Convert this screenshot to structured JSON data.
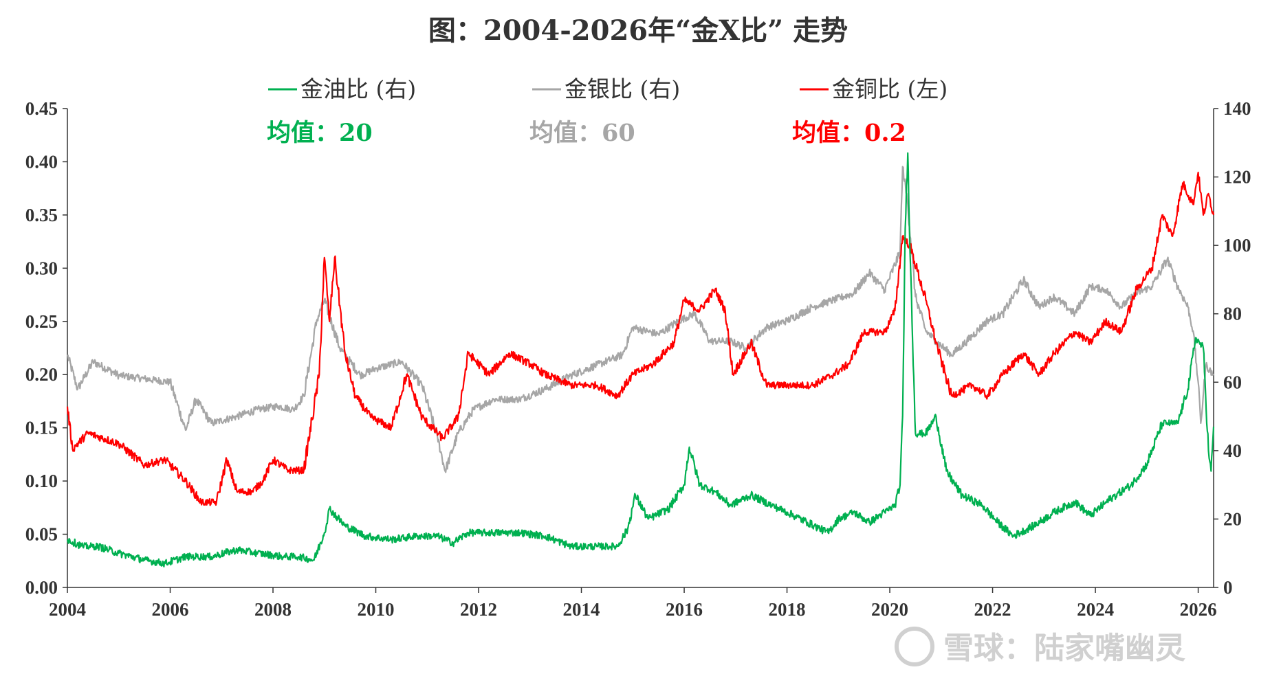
{
  "chart_data": {
    "type": "line",
    "title": "图：2004-2026年“金X比” 走势",
    "x_range": [
      2004,
      2026.3
    ],
    "x_ticks": [
      "2004",
      "2006",
      "2008",
      "2010",
      "2012",
      "2014",
      "2016",
      "2018",
      "2020",
      "2022",
      "2024",
      "2026"
    ],
    "y_left": {
      "range": [
        0,
        0.45
      ],
      "ticks": [
        "0.00",
        "0.05",
        "0.10",
        "0.15",
        "0.20",
        "0.25",
        "0.30",
        "0.35",
        "0.40",
        "0.45"
      ]
    },
    "y_right": {
      "range": [
        0,
        140
      ],
      "ticks": [
        "0",
        "20",
        "40",
        "60",
        "80",
        "100",
        "120",
        "140"
      ]
    },
    "grid": false,
    "legend_position": "top",
    "series": [
      {
        "name": "金油比 (右)",
        "axis": "right",
        "color": "#00b050",
        "avg_label": "均值：",
        "avg_value": "20",
        "points": [
          [
            2004,
            14
          ],
          [
            2004.3,
            12
          ],
          [
            2004.6,
            12
          ],
          [
            2005,
            10
          ],
          [
            2005.5,
            8
          ],
          [
            2005.9,
            7
          ],
          [
            2006.3,
            9
          ],
          [
            2006.8,
            9
          ],
          [
            2007.3,
            11
          ],
          [
            2007.7,
            10
          ],
          [
            2008.2,
            9
          ],
          [
            2008.5,
            9
          ],
          [
            2008.8,
            8
          ],
          [
            2009.0,
            16
          ],
          [
            2009.1,
            23
          ],
          [
            2009.4,
            18
          ],
          [
            2009.8,
            15
          ],
          [
            2010.3,
            14
          ],
          [
            2010.8,
            15
          ],
          [
            2011.2,
            15
          ],
          [
            2011.5,
            13
          ],
          [
            2011.8,
            16
          ],
          [
            2012.3,
            16
          ],
          [
            2012.8,
            16
          ],
          [
            2013.3,
            15
          ],
          [
            2013.8,
            12
          ],
          [
            2014.3,
            12
          ],
          [
            2014.7,
            12
          ],
          [
            2014.9,
            17
          ],
          [
            2015.05,
            27
          ],
          [
            2015.3,
            20
          ],
          [
            2015.7,
            23
          ],
          [
            2016.0,
            30
          ],
          [
            2016.1,
            41
          ],
          [
            2016.3,
            30
          ],
          [
            2016.6,
            28
          ],
          [
            2016.9,
            24
          ],
          [
            2017.3,
            27
          ],
          [
            2017.7,
            24
          ],
          [
            2018.0,
            22
          ],
          [
            2018.4,
            19
          ],
          [
            2018.8,
            16
          ],
          [
            2019.0,
            20
          ],
          [
            2019.3,
            22
          ],
          [
            2019.6,
            19
          ],
          [
            2019.9,
            22
          ],
          [
            2020.1,
            24
          ],
          [
            2020.2,
            30
          ],
          [
            2020.25,
            50
          ],
          [
            2020.3,
            105
          ],
          [
            2020.35,
            127
          ],
          [
            2020.4,
            95
          ],
          [
            2020.5,
            45
          ],
          [
            2020.7,
            45
          ],
          [
            2020.9,
            50
          ],
          [
            2021.1,
            34
          ],
          [
            2021.4,
            27
          ],
          [
            2021.8,
            24
          ],
          [
            2022.1,
            19
          ],
          [
            2022.4,
            15
          ],
          [
            2022.8,
            18
          ],
          [
            2023.2,
            22
          ],
          [
            2023.6,
            25
          ],
          [
            2023.9,
            21
          ],
          [
            2024.3,
            26
          ],
          [
            2024.7,
            30
          ],
          [
            2025.0,
            36
          ],
          [
            2025.3,
            48
          ],
          [
            2025.6,
            48
          ],
          [
            2025.8,
            58
          ],
          [
            2025.95,
            73
          ],
          [
            2026.1,
            70
          ],
          [
            2026.2,
            40
          ],
          [
            2026.25,
            34
          ],
          [
            2026.3,
            47
          ]
        ]
      },
      {
        "name": "金银比 (右)",
        "axis": "right",
        "color": "#a6a6a6",
        "avg_label": "均值：",
        "avg_value": "60",
        "points": [
          [
            2004,
            68
          ],
          [
            2004.2,
            58
          ],
          [
            2004.5,
            66
          ],
          [
            2005,
            62
          ],
          [
            2005.5,
            61
          ],
          [
            2006,
            60
          ],
          [
            2006.3,
            46
          ],
          [
            2006.5,
            55
          ],
          [
            2006.8,
            48
          ],
          [
            2007.3,
            50
          ],
          [
            2007.7,
            52
          ],
          [
            2008.1,
            53
          ],
          [
            2008.4,
            52
          ],
          [
            2008.6,
            56
          ],
          [
            2008.85,
            78
          ],
          [
            2009.0,
            84
          ],
          [
            2009.3,
            70
          ],
          [
            2009.7,
            62
          ],
          [
            2010.0,
            64
          ],
          [
            2010.5,
            66
          ],
          [
            2010.9,
            59
          ],
          [
            2011.2,
            44
          ],
          [
            2011.35,
            34
          ],
          [
            2011.6,
            45
          ],
          [
            2011.9,
            52
          ],
          [
            2012.3,
            55
          ],
          [
            2012.8,
            55
          ],
          [
            2013.3,
            58
          ],
          [
            2013.8,
            62
          ],
          [
            2014.3,
            65
          ],
          [
            2014.8,
            68
          ],
          [
            2015.0,
            76
          ],
          [
            2015.5,
            74
          ],
          [
            2015.9,
            78
          ],
          [
            2016.2,
            80
          ],
          [
            2016.5,
            72
          ],
          [
            2016.9,
            72
          ],
          [
            2017.2,
            70
          ],
          [
            2017.6,
            76
          ],
          [
            2018.0,
            78
          ],
          [
            2018.5,
            82
          ],
          [
            2018.9,
            84
          ],
          [
            2019.3,
            86
          ],
          [
            2019.6,
            92
          ],
          [
            2019.9,
            87
          ],
          [
            2020.2,
            98
          ],
          [
            2020.25,
            123
          ],
          [
            2020.35,
            112
          ],
          [
            2020.5,
            85
          ],
          [
            2020.7,
            75
          ],
          [
            2020.9,
            72
          ],
          [
            2021.2,
            68
          ],
          [
            2021.5,
            72
          ],
          [
            2021.9,
            78
          ],
          [
            2022.2,
            80
          ],
          [
            2022.6,
            90
          ],
          [
            2022.9,
            82
          ],
          [
            2023.2,
            85
          ],
          [
            2023.6,
            80
          ],
          [
            2023.9,
            88
          ],
          [
            2024.2,
            87
          ],
          [
            2024.5,
            82
          ],
          [
            2024.8,
            86
          ],
          [
            2025.1,
            88
          ],
          [
            2025.4,
            96
          ],
          [
            2025.6,
            88
          ],
          [
            2025.8,
            82
          ],
          [
            2025.9,
            75
          ],
          [
            2026.0,
            60
          ],
          [
            2026.05,
            48
          ],
          [
            2026.15,
            65
          ],
          [
            2026.3,
            62
          ]
        ]
      },
      {
        "name": "金铜比 (左)",
        "axis": "left",
        "color": "#ff0000",
        "avg_label": "均值：",
        "avg_value": "0.2",
        "points": [
          [
            2004,
            0.17
          ],
          [
            2004.1,
            0.13
          ],
          [
            2004.4,
            0.145
          ],
          [
            2005.0,
            0.135
          ],
          [
            2005.5,
            0.115
          ],
          [
            2005.9,
            0.12
          ],
          [
            2006.3,
            0.1
          ],
          [
            2006.6,
            0.08
          ],
          [
            2006.9,
            0.08
          ],
          [
            2007.1,
            0.12
          ],
          [
            2007.3,
            0.09
          ],
          [
            2007.6,
            0.09
          ],
          [
            2007.8,
            0.1
          ],
          [
            2008.0,
            0.12
          ],
          [
            2008.3,
            0.11
          ],
          [
            2008.6,
            0.11
          ],
          [
            2008.9,
            0.2
          ],
          [
            2009.0,
            0.31
          ],
          [
            2009.1,
            0.25
          ],
          [
            2009.2,
            0.31
          ],
          [
            2009.4,
            0.22
          ],
          [
            2009.6,
            0.18
          ],
          [
            2009.9,
            0.16
          ],
          [
            2010.3,
            0.15
          ],
          [
            2010.6,
            0.2
          ],
          [
            2010.9,
            0.16
          ],
          [
            2011.3,
            0.14
          ],
          [
            2011.6,
            0.16
          ],
          [
            2011.8,
            0.22
          ],
          [
            2012.2,
            0.2
          ],
          [
            2012.6,
            0.22
          ],
          [
            2013.0,
            0.21
          ],
          [
            2013.3,
            0.2
          ],
          [
            2013.8,
            0.19
          ],
          [
            2014.3,
            0.19
          ],
          [
            2014.7,
            0.18
          ],
          [
            2015.0,
            0.2
          ],
          [
            2015.4,
            0.21
          ],
          [
            2015.8,
            0.23
          ],
          [
            2016.0,
            0.27
          ],
          [
            2016.3,
            0.26
          ],
          [
            2016.6,
            0.28
          ],
          [
            2016.8,
            0.26
          ],
          [
            2016.95,
            0.2
          ],
          [
            2017.3,
            0.23
          ],
          [
            2017.6,
            0.19
          ],
          [
            2018.0,
            0.19
          ],
          [
            2018.5,
            0.19
          ],
          [
            2018.9,
            0.2
          ],
          [
            2019.2,
            0.21
          ],
          [
            2019.5,
            0.24
          ],
          [
            2019.9,
            0.24
          ],
          [
            2020.1,
            0.26
          ],
          [
            2020.25,
            0.33
          ],
          [
            2020.4,
            0.32
          ],
          [
            2020.7,
            0.27
          ],
          [
            2020.9,
            0.23
          ],
          [
            2021.2,
            0.18
          ],
          [
            2021.6,
            0.19
          ],
          [
            2021.9,
            0.18
          ],
          [
            2022.2,
            0.2
          ],
          [
            2022.6,
            0.22
          ],
          [
            2022.9,
            0.2
          ],
          [
            2023.2,
            0.22
          ],
          [
            2023.6,
            0.24
          ],
          [
            2023.9,
            0.23
          ],
          [
            2024.2,
            0.25
          ],
          [
            2024.5,
            0.24
          ],
          [
            2024.8,
            0.28
          ],
          [
            2025.1,
            0.3
          ],
          [
            2025.3,
            0.35
          ],
          [
            2025.5,
            0.33
          ],
          [
            2025.7,
            0.38
          ],
          [
            2025.9,
            0.36
          ],
          [
            2026.0,
            0.39
          ],
          [
            2026.1,
            0.35
          ],
          [
            2026.2,
            0.37
          ],
          [
            2026.3,
            0.35
          ]
        ]
      }
    ]
  },
  "watermark": {
    "text": "雪球：陆家嘴幽灵"
  }
}
